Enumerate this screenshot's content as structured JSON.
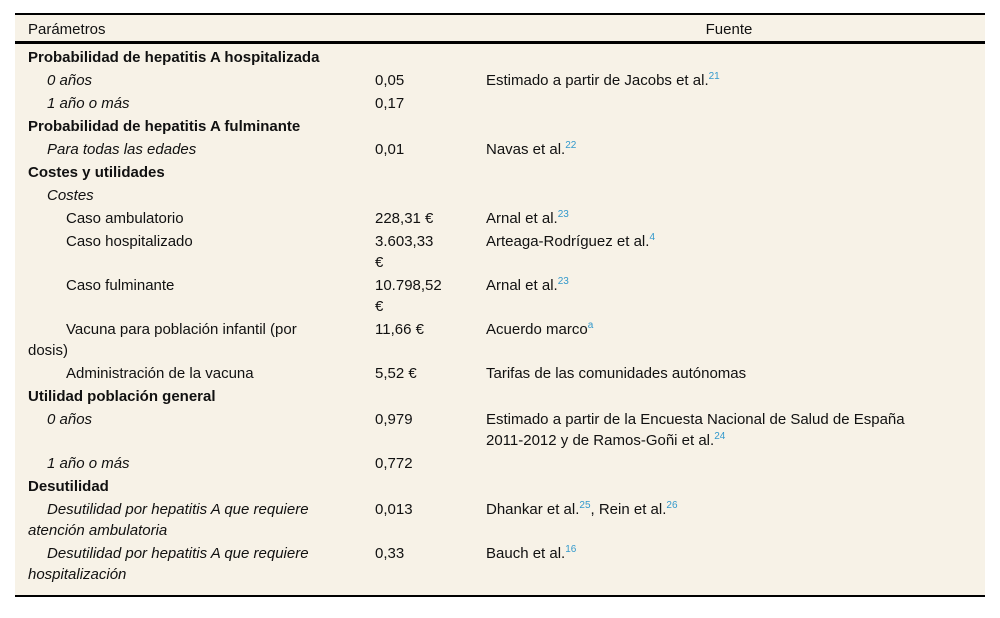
{
  "table": {
    "colors": {
      "background": "#f7f2e7",
      "rule": "#000000",
      "superscript": "#3399cc",
      "text": "#111111"
    },
    "header": {
      "param": "Parámetros",
      "source": "Fuente"
    },
    "rows": [
      {
        "level": 1,
        "param_lines": [
          "Probabilidad de hepatitis A hospitalizada"
        ],
        "value_lines": [],
        "source_parts": []
      },
      {
        "level": 2,
        "param_lines": [
          "0 años"
        ],
        "value_lines": [
          "0,05"
        ],
        "source_parts": [
          {
            "text": "Estimado a partir de Jacobs et al.",
            "sup": "21"
          }
        ]
      },
      {
        "level": 2,
        "param_lines": [
          "1 año o más"
        ],
        "value_lines": [
          "0,17"
        ],
        "source_parts": []
      },
      {
        "level": 1,
        "param_lines": [
          "Probabilidad de hepatitis A fulminante"
        ],
        "value_lines": [],
        "source_parts": []
      },
      {
        "level": 2,
        "param_lines": [
          "Para todas las edades"
        ],
        "value_lines": [
          "0,01"
        ],
        "source_parts": [
          {
            "text": "Navas et al.",
            "sup": "22"
          }
        ]
      },
      {
        "level": 1,
        "param_lines": [
          "Costes y utilidades"
        ],
        "value_lines": [],
        "source_parts": []
      },
      {
        "level": 2,
        "param_lines": [
          "Costes"
        ],
        "value_lines": [],
        "source_parts": []
      },
      {
        "level": 3,
        "param_lines": [
          "Caso ambulatorio"
        ],
        "value_lines": [
          "228,31 €"
        ],
        "source_parts": [
          {
            "text": "Arnal et al.",
            "sup": "23"
          }
        ]
      },
      {
        "level": 3,
        "param_lines": [
          "Caso hospitalizado"
        ],
        "value_lines": [
          "3.603,33",
          "€"
        ],
        "source_parts": [
          {
            "text": "Arteaga-Rodríguez et al.",
            "sup": "4"
          }
        ]
      },
      {
        "level": 3,
        "param_lines": [
          "Caso fulminante"
        ],
        "value_lines": [
          "10.798,52",
          "€"
        ],
        "source_parts": [
          {
            "text": "Arnal et al.",
            "sup": "23"
          }
        ]
      },
      {
        "level": 3,
        "param_lines": [
          "Vacuna para población infantil (por",
          "dosis)"
        ],
        "value_lines": [
          "11,66 €"
        ],
        "source_parts": [
          {
            "text": "Acuerdo marco",
            "sup": "a"
          }
        ]
      },
      {
        "level": 3,
        "param_lines": [
          "Administración de la vacuna"
        ],
        "value_lines": [
          "5,52 €"
        ],
        "source_parts": [
          {
            "text": "Tarifas de las comunidades autónomas"
          }
        ]
      },
      {
        "level": 1,
        "param_lines": [
          "Utilidad población general"
        ],
        "value_lines": [],
        "source_parts": []
      },
      {
        "level": 2,
        "param_lines": [
          "0 años"
        ],
        "value_lines": [
          "0,979"
        ],
        "source_parts": [
          {
            "text": "Estimado a partir de la Encuesta Nacional de Salud de España"
          },
          {
            "br": true
          },
          {
            "text": "2011-2012 y de Ramos-Goñi et al.",
            "sup": "24"
          }
        ]
      },
      {
        "level": 2,
        "param_lines": [
          "1 año o más"
        ],
        "value_lines": [
          "0,772"
        ],
        "source_parts": []
      },
      {
        "level": 1,
        "param_lines": [
          "Desutilidad"
        ],
        "value_lines": [],
        "source_parts": []
      },
      {
        "level": 2,
        "param_lines": [
          "Desutilidad por hepatitis A que requiere",
          "atención ambulatoria"
        ],
        "value_lines": [
          "0,013"
        ],
        "source_parts": [
          {
            "text": "Dhankar et al.",
            "sup": "25"
          },
          {
            "text": ", Rein et al.",
            "sup": "26"
          }
        ]
      },
      {
        "level": 2,
        "param_lines": [
          "Desutilidad por hepatitis A que requiere",
          "hospitalización"
        ],
        "value_lines": [
          "0,33"
        ],
        "source_parts": [
          {
            "text": "Bauch et al.",
            "sup": "16"
          }
        ]
      }
    ]
  }
}
